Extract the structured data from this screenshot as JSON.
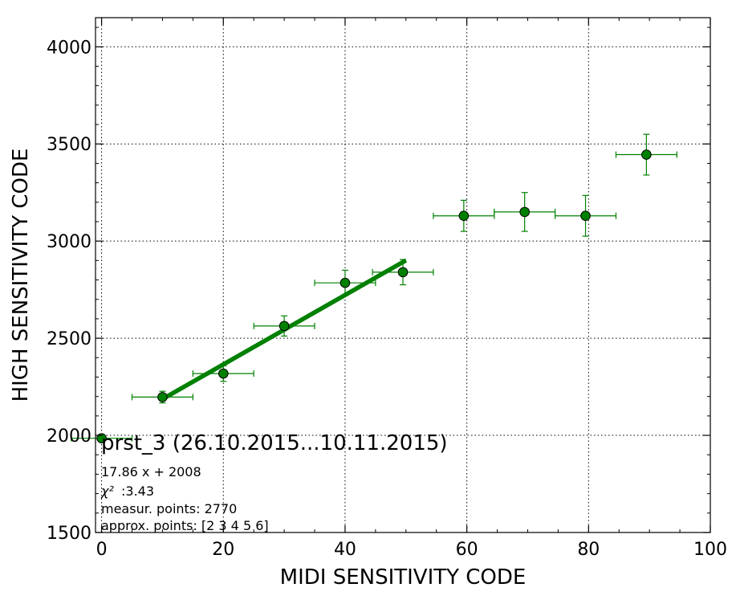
{
  "chart_data": {
    "type": "scatter",
    "xlabel": "MIDI SENSITIVITY CODE",
    "ylabel": "HIGH SENSITIVITY CODE",
    "xlim": [
      -1,
      100
    ],
    "ylim": [
      1500,
      4150
    ],
    "x_ticks": [
      0,
      20,
      40,
      60,
      80,
      100
    ],
    "y_ticks": [
      1500,
      2000,
      2500,
      3000,
      3500,
      4000
    ],
    "grid": true,
    "color": "#008000",
    "points": [
      {
        "x": 0,
        "y": 1985,
        "xerr": 5,
        "yerr": 12
      },
      {
        "x": 10,
        "y": 2197,
        "xerr": 5,
        "yerr": 30
      },
      {
        "x": 20,
        "y": 2318,
        "xerr": 5,
        "yerr": 40
      },
      {
        "x": 30,
        "y": 2563,
        "xerr": 5,
        "yerr": 52
      },
      {
        "x": 40,
        "y": 2785,
        "xerr": 5,
        "yerr": 65
      },
      {
        "x": 49.5,
        "y": 2840,
        "xerr": 5,
        "yerr": 65
      },
      {
        "x": 59.5,
        "y": 3130,
        "xerr": 5,
        "yerr": 80
      },
      {
        "x": 69.5,
        "y": 3150,
        "xerr": 5,
        "yerr": 100
      },
      {
        "x": 79.5,
        "y": 3130,
        "xerr": 5,
        "yerr": 105
      },
      {
        "x": 89.5,
        "y": 3445,
        "xerr": 5,
        "yerr": 105
      }
    ],
    "fit": {
      "slope": 17.86,
      "intercept": 2008,
      "x_range": [
        10,
        50
      ]
    },
    "annotation": {
      "title": "prst_3 (26.10.2015...10.11.2015)",
      "equation": "17.86 x + 2008",
      "chi2_label": "χ²",
      "chi2_value": ":3.43",
      "measur_points": "measur. points: 2770",
      "approx_points": "approx. points: [2 3 4 5 6]"
    }
  }
}
